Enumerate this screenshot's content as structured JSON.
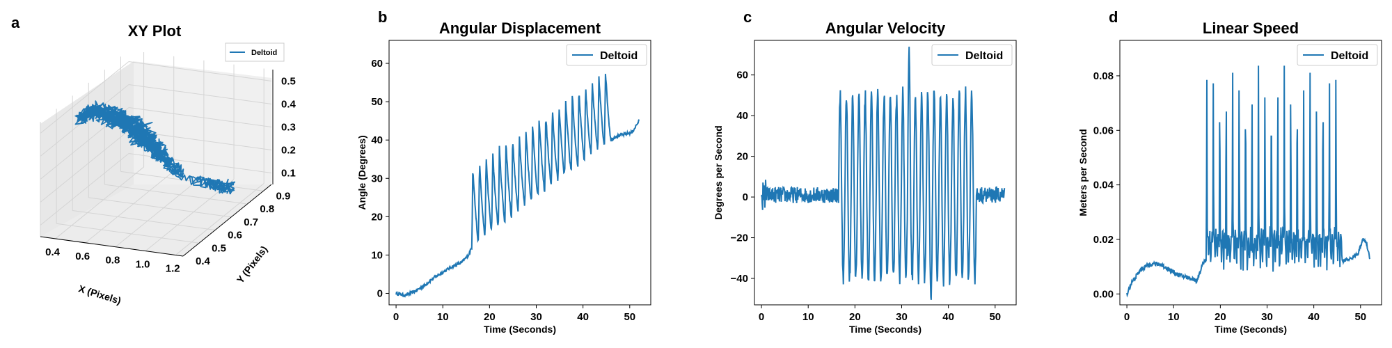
{
  "colors": {
    "series": "#1f77b4",
    "pane": "#f0f0f0",
    "grid": "#d8d8d8"
  },
  "chart_data": [
    {
      "panel": "a",
      "type": "line",
      "projection": "3d",
      "title": "XY Plot",
      "xlabel": "X (Pixels)",
      "ylabel": "Y (Pixels)",
      "zlabel": "",
      "x_ticks": [
        "0.4",
        "0.6",
        "0.8",
        "1.0",
        "1.2"
      ],
      "y_ticks": [
        "0.4",
        "0.5",
        "0.6",
        "0.7",
        "0.8",
        "0.9"
      ],
      "z_ticks": [
        "0.1",
        "0.2",
        "0.3",
        "0.4",
        "0.5"
      ],
      "xlim": [
        0.3,
        1.25
      ],
      "ylim": [
        0.4,
        0.95
      ],
      "zlim": [
        0.05,
        0.55
      ],
      "legend": {
        "entries": [
          "Deltoid"
        ],
        "position": "upper-right"
      },
      "series": [
        {
          "name": "Deltoid",
          "description_points": [
            [
              0.38,
              0.55,
              0.48
            ],
            [
              0.45,
              0.6,
              0.5
            ],
            [
              0.55,
              0.62,
              0.47
            ],
            [
              0.62,
              0.66,
              0.42
            ],
            [
              0.7,
              0.68,
              0.36
            ],
            [
              0.75,
              0.7,
              0.3
            ],
            [
              0.8,
              0.72,
              0.24
            ],
            [
              0.88,
              0.74,
              0.18
            ],
            [
              0.97,
              0.78,
              0.13
            ],
            [
              1.05,
              0.82,
              0.1
            ],
            [
              1.12,
              0.84,
              0.08
            ]
          ]
        }
      ]
    },
    {
      "panel": "b",
      "type": "line",
      "title": "Angular Displacement",
      "xlabel": "Time (Seconds)",
      "ylabel": "Angle (Degrees)",
      "xlim": [
        -1.5,
        54.5
      ],
      "ylim": [
        -3,
        66
      ],
      "x_ticks": [
        0,
        10,
        20,
        30,
        40,
        50
      ],
      "y_ticks": [
        0,
        10,
        20,
        30,
        40,
        50,
        60
      ],
      "legend": {
        "entries": [
          "Deltoid"
        ],
        "position": "upper-right"
      },
      "series": [
        {
          "name": "Deltoid",
          "t_range": [
            0,
            52
          ],
          "baseline_points": [
            [
              0,
              0
            ],
            [
              2,
              -0.5
            ],
            [
              4,
              0.5
            ],
            [
              6,
              2
            ],
            [
              8,
              4
            ],
            [
              10,
              5.5
            ],
            [
              12,
              7
            ],
            [
              14,
              8
            ],
            [
              15.5,
              10
            ],
            [
              16.2,
              12
            ],
            [
              46,
              40
            ],
            [
              47,
              41
            ],
            [
              49,
              41.5
            ],
            [
              50.5,
              42
            ],
            [
              52,
              45
            ]
          ],
          "oscillation": {
            "start": 16.2,
            "end": 46,
            "count": 21,
            "peak_start": 33,
            "peak_end": 59,
            "trough_start": 12,
            "trough_end": 40
          }
        }
      ]
    },
    {
      "panel": "c",
      "type": "line",
      "title": "Angular Velocity",
      "xlabel": "Time (Seconds)",
      "ylabel": "Degrees per Second",
      "xlim": [
        -1.5,
        54.5
      ],
      "ylim": [
        -53,
        77
      ],
      "x_ticks": [
        0,
        10,
        20,
        30,
        40,
        50
      ],
      "y_ticks": [
        -40,
        -20,
        0,
        20,
        40,
        60
      ],
      "legend": {
        "entries": [
          "Deltoid"
        ],
        "position": "upper-right"
      },
      "series": [
        {
          "name": "Deltoid",
          "t_range": [
            0,
            52
          ],
          "quiet_level": 1,
          "quiet_noise": 4,
          "oscillation": {
            "start": 16.5,
            "end": 46,
            "count": 22,
            "peak": 50,
            "trough": -40,
            "max_peak": 72,
            "min_trough": -50
          }
        }
      ]
    },
    {
      "panel": "d",
      "type": "line",
      "title": "Linear Speed",
      "xlabel": "Time (Seconds)",
      "ylabel": "Meters per Second",
      "xlim": [
        -1.5,
        54.5
      ],
      "ylim": [
        -0.004,
        0.093
      ],
      "x_ticks": [
        0,
        10,
        20,
        30,
        40,
        50
      ],
      "y_ticks": [
        0.0,
        0.02,
        0.04,
        0.06,
        0.08
      ],
      "y_tick_labels": [
        "0.00",
        "0.02",
        "0.04",
        "0.06",
        "0.08"
      ],
      "legend": {
        "entries": [
          "Deltoid"
        ],
        "position": "upper-right"
      },
      "series": [
        {
          "name": "Deltoid",
          "t_range": [
            0,
            52
          ],
          "baseline_points": [
            [
              0,
              0.0
            ],
            [
              1,
              0.004
            ],
            [
              3,
              0.009
            ],
            [
              5,
              0.011
            ],
            [
              7,
              0.011
            ],
            [
              9,
              0.009
            ],
            [
              11,
              0.007
            ],
            [
              13,
              0.006
            ],
            [
              15,
              0.005
            ],
            [
              16.5,
              0.012
            ],
            [
              17.5,
              0.013
            ]
          ],
          "oscillation": {
            "start": 17,
            "end": 46,
            "count": 21,
            "peak": 0.085,
            "trough": 0.01
          },
          "tail_points": [
            [
              46,
              0.012
            ],
            [
              48,
              0.013
            ],
            [
              49.5,
              0.015
            ],
            [
              50.5,
              0.02
            ],
            [
              51.2,
              0.019
            ],
            [
              52,
              0.013
            ]
          ]
        }
      ]
    }
  ]
}
